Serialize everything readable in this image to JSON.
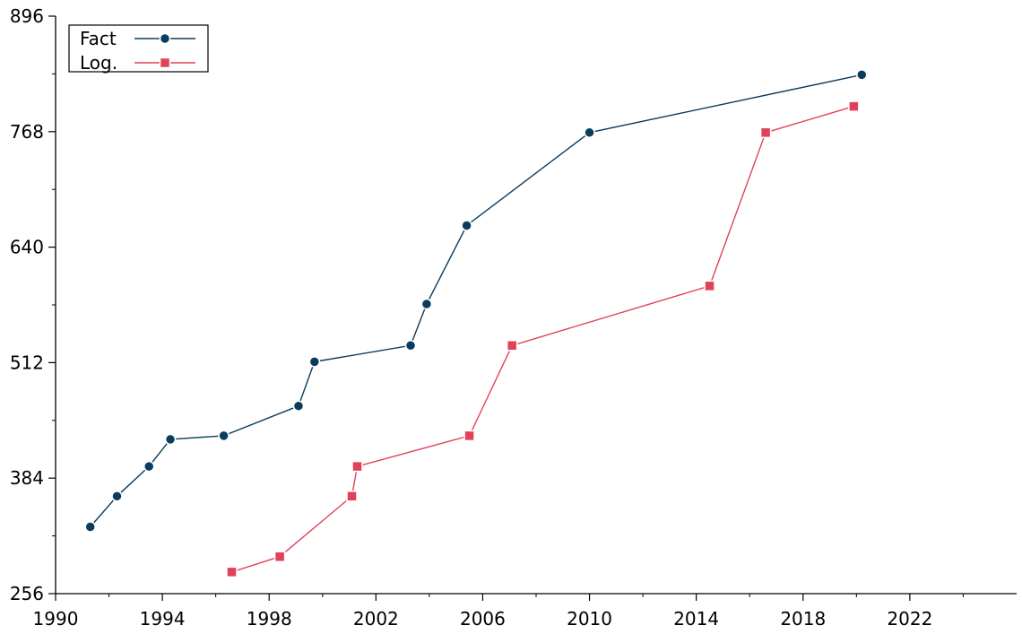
{
  "chart_data": {
    "type": "line",
    "title": "",
    "xlabel": "",
    "ylabel": "",
    "xlim": [
      1990,
      2026
    ],
    "ylim": [
      256,
      896
    ],
    "x_ticks": [
      "1990",
      "1994",
      "1998",
      "2002",
      "2006",
      "2010",
      "2014",
      "2018",
      "2022"
    ],
    "y_ticks": [
      "256",
      "384",
      "512",
      "640",
      "768",
      "896"
    ],
    "grid": false,
    "legend_position": "top-left",
    "series": [
      {
        "name": "Fact",
        "color": "#0b3c5d",
        "marker": "circle",
        "points": [
          [
            1991.3,
            330
          ],
          [
            1992.3,
            364
          ],
          [
            1993.5,
            397
          ],
          [
            1994.3,
            427
          ],
          [
            1996.3,
            431
          ],
          [
            1999.1,
            464
          ],
          [
            1999.7,
            513
          ],
          [
            2003.3,
            531
          ],
          [
            2003.9,
            577
          ],
          [
            2005.4,
            664
          ],
          [
            2010.0,
            767
          ],
          [
            2020.2,
            831
          ]
        ]
      },
      {
        "name": "Log.",
        "color": "#e0425a",
        "marker": "square",
        "points": [
          [
            1996.6,
            280
          ],
          [
            1998.4,
            297
          ],
          [
            2001.1,
            364
          ],
          [
            2001.3,
            397
          ],
          [
            2005.5,
            431
          ],
          [
            2007.1,
            531
          ],
          [
            2014.5,
            597
          ],
          [
            2016.6,
            767
          ],
          [
            2019.9,
            796
          ]
        ]
      }
    ]
  }
}
